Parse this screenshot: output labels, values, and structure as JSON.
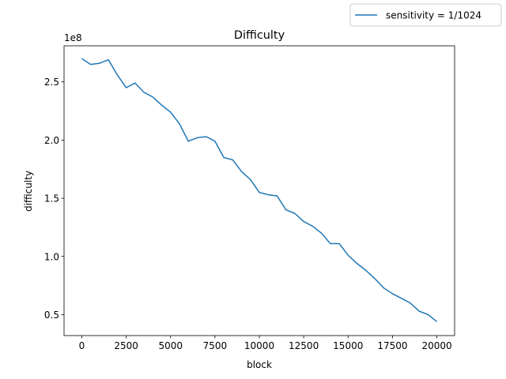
{
  "chart_data": {
    "type": "line",
    "title": "Difficulty",
    "xlabel": "block",
    "ylabel": "difficulty",
    "y_offset_label": "1e8",
    "x": [
      0,
      500,
      1000,
      1500,
      2000,
      2500,
      3000,
      3500,
      4000,
      4500,
      5000,
      5500,
      6000,
      6500,
      7000,
      7500,
      8000,
      8500,
      9000,
      9500,
      10000,
      10500,
      11000,
      11500,
      12000,
      12500,
      13000,
      13500,
      14000,
      14500,
      15000,
      15500,
      16000,
      16500,
      17000,
      17500,
      18000,
      18500,
      19000,
      19500,
      20000
    ],
    "series": [
      {
        "name": "sensitivity = 1/1024",
        "color": "#1f77b4",
        "values": [
          2.7,
          2.65,
          2.66,
          2.69,
          2.56,
          2.45,
          2.49,
          2.41,
          2.37,
          2.3,
          2.24,
          2.14,
          1.99,
          2.02,
          2.03,
          1.99,
          1.85,
          1.83,
          1.73,
          1.66,
          1.55,
          1.53,
          1.52,
          1.4,
          1.37,
          1.3,
          1.26,
          1.2,
          1.11,
          1.11,
          1.01,
          0.94,
          0.88,
          0.81,
          0.73,
          0.68,
          0.64,
          0.6,
          0.53,
          0.5,
          0.44
        ]
      }
    ],
    "xlim": [
      -1000,
      21000
    ],
    "xticks": [
      0,
      2500,
      5000,
      7500,
      10000,
      12500,
      15000,
      17500,
      20000
    ],
    "ylim": [
      0.32,
      2.81
    ],
    "yticks": [
      0.5,
      {
        "value": 1,
        "label": "1.0"
      },
      1.5,
      {
        "value": 2,
        "label": "2.0"
      },
      2.5
    ],
    "grid": false,
    "legend": "figure-upper-right"
  }
}
